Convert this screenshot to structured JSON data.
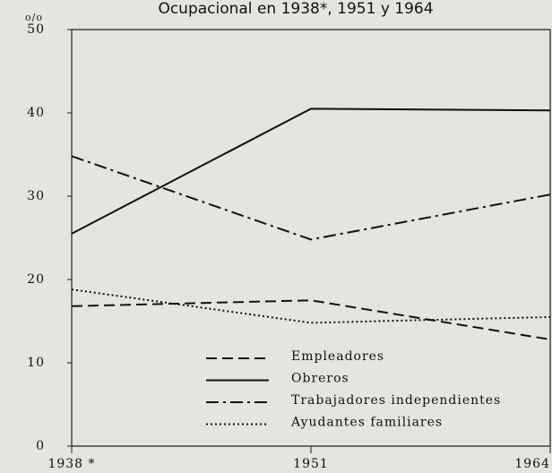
{
  "chart_data": {
    "type": "line",
    "title": "Ocupacional en 1938*, 1951 y 1964",
    "ylabel": "o/o",
    "categories": [
      "1938 *",
      "1951",
      "1964"
    ],
    "ylim": [
      0,
      50
    ],
    "yticks": [
      0,
      10,
      20,
      30,
      40,
      50
    ],
    "legend": "bottom-center",
    "series": [
      {
        "name": "Empleadores",
        "color": "#111111",
        "dash": "dashed",
        "values": [
          16.8,
          17.5,
          12.8
        ]
      },
      {
        "name": "Obreros",
        "color": "#111111",
        "dash": "solid",
        "values": [
          25.5,
          40.5,
          40.3
        ]
      },
      {
        "name": "Trabajadores independientes",
        "color": "#111111",
        "dash": "dashdot",
        "values": [
          34.8,
          24.8,
          30.2
        ]
      },
      {
        "name": "Ayudantes familiares",
        "color": "#111111",
        "dash": "dotted",
        "values": [
          18.8,
          14.8,
          15.5
        ]
      }
    ]
  }
}
